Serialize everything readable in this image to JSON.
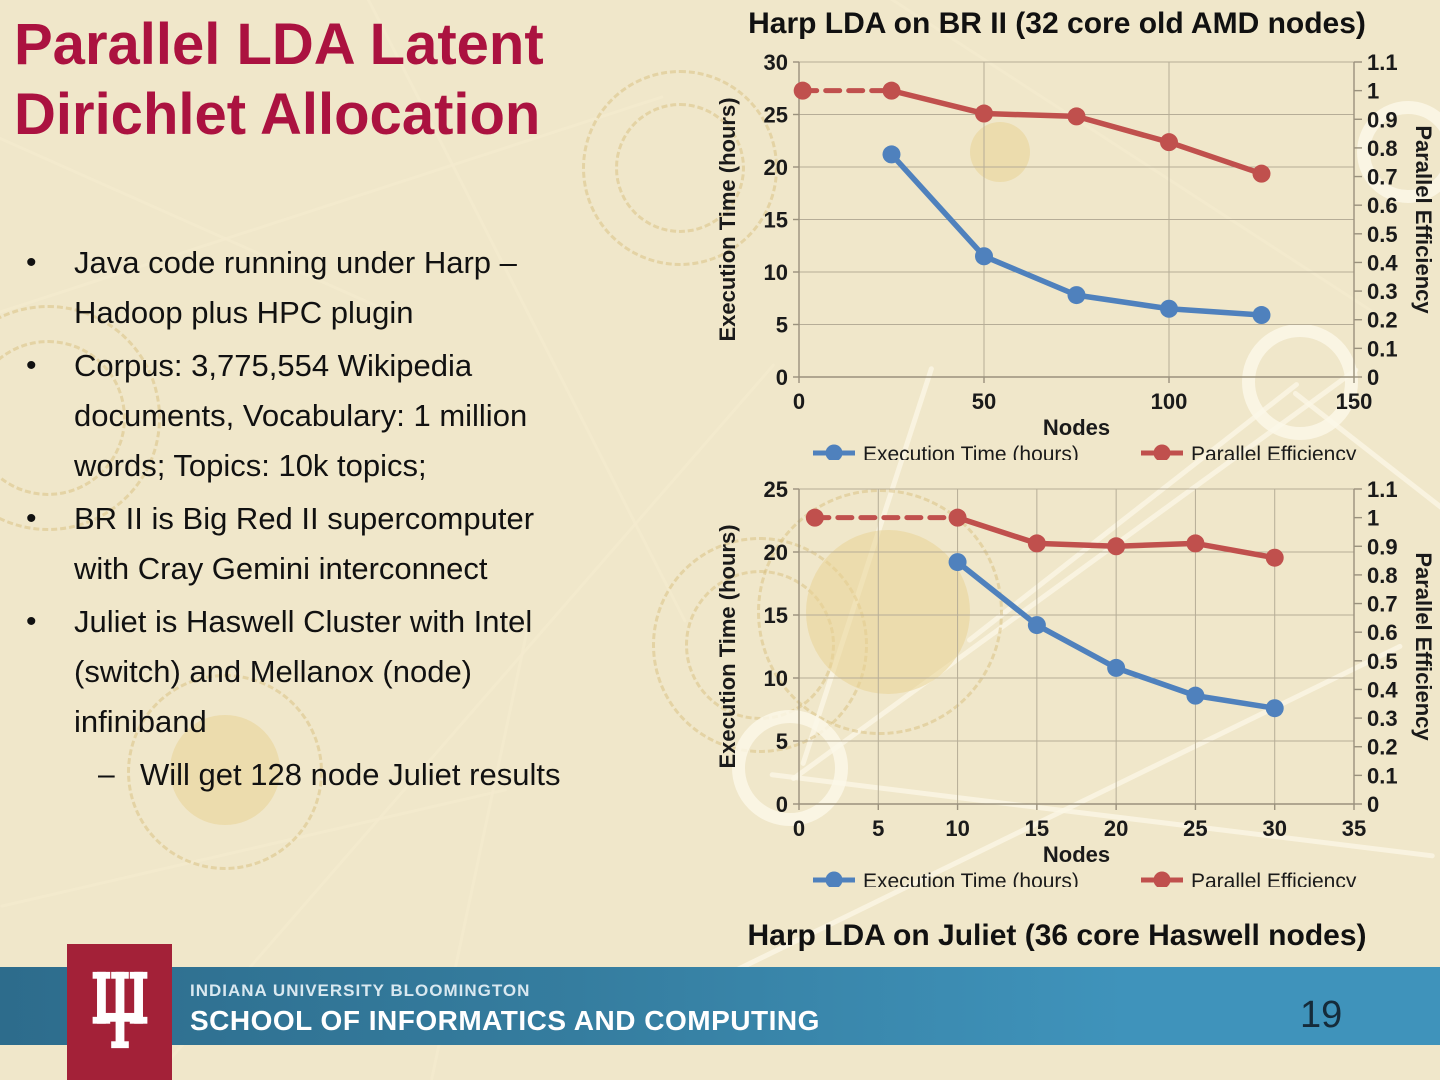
{
  "slide": {
    "title": "Parallel LDA Latent\nDirichlet Allocation",
    "bullets": [
      {
        "level": 1,
        "marker": "•",
        "text": "Java code running under Harp –\nHadoop plus HPC plugin"
      },
      {
        "level": 1,
        "marker": "•",
        "text": "Corpus: 3,775,554 Wikipedia\ndocuments, Vocabulary: 1 million\nwords; Topics: 10k topics;"
      },
      {
        "level": 1,
        "marker": "•",
        "text": "BR II is Big Red II supercomputer\nwith Cray Gemini interconnect"
      },
      {
        "level": 1,
        "marker": "•",
        "text": "Juliet is Haswell Cluster with Intel\n(switch) and Mellanox (node)\ninfiniband"
      },
      {
        "level": 2,
        "marker": "–",
        "text": "Will get 128 node Juliet results"
      }
    ],
    "page_number": "19"
  },
  "footer": {
    "line1": "INDIANA UNIVERSITY BLOOMINGTON",
    "line2": "SCHOOL OF INFORMATICS AND COMPUTING",
    "logo": "iu-trident-logo"
  },
  "colors": {
    "background": "#f0e7ca",
    "title_crimson": "#ab1240",
    "chart_blue": "#4f81bd",
    "chart_red": "#c0504d",
    "footer_teal_left": "#2d6c8c",
    "footer_teal_right": "#3f93bb",
    "logo_crimson": "#a32138",
    "page_number_color": "#152b3a"
  },
  "chart_data": [
    {
      "type": "line",
      "title": "Harp LDA on BR II (32 core old AMD nodes)",
      "title_position": "top",
      "xlabel": "Nodes",
      "ylabel_left": "Execution Time (hours)",
      "ylabel_right": "Parallel Efficiency",
      "xlim": [
        0,
        150
      ],
      "xticks": [
        0,
        50,
        100,
        150
      ],
      "ylim_left": [
        0,
        30
      ],
      "yticks_left": [
        0,
        5,
        10,
        15,
        20,
        25,
        30
      ],
      "ylim_right": [
        0,
        1.1
      ],
      "yticks_right": [
        0,
        0.1,
        0.2,
        0.3,
        0.4,
        0.5,
        0.6,
        0.7,
        0.8,
        0.9,
        1,
        1.1
      ],
      "grid": true,
      "legend_position": "bottom",
      "series": [
        {
          "name": "Execution Time (hours)",
          "axis": "left",
          "color": "#4f81bd",
          "marker": "circle",
          "points": [
            [
              25,
              21.2
            ],
            [
              50,
              11.5
            ],
            [
              75,
              7.8
            ],
            [
              100,
              6.5
            ],
            [
              125,
              5.9
            ]
          ]
        },
        {
          "name": "Parallel Efficiency",
          "axis": "right",
          "color": "#c0504d",
          "marker": "circle",
          "first_segment_dashed": true,
          "points": [
            [
              1,
              1.0
            ],
            [
              25,
              1.0
            ],
            [
              50,
              0.92
            ],
            [
              75,
              0.91
            ],
            [
              100,
              0.82
            ],
            [
              125,
              0.71
            ]
          ]
        }
      ]
    },
    {
      "type": "line",
      "title": "Harp LDA on Juliet (36 core Haswell nodes)",
      "title_position": "bottom",
      "xlabel": "Nodes",
      "ylabel_left": "Execution Time (hours)",
      "ylabel_right": "Parallel Efficiency",
      "xlim": [
        0,
        35
      ],
      "xticks": [
        0,
        5,
        10,
        15,
        20,
        25,
        30,
        35
      ],
      "ylim_left": [
        0,
        25
      ],
      "yticks_left": [
        0,
        5,
        10,
        15,
        20,
        25
      ],
      "ylim_right": [
        0,
        1.1
      ],
      "yticks_right": [
        0,
        0.1,
        0.2,
        0.3,
        0.4,
        0.5,
        0.6,
        0.7,
        0.8,
        0.9,
        1,
        1.1
      ],
      "grid": true,
      "legend_position": "bottom",
      "series": [
        {
          "name": "Execution Time (hours)",
          "axis": "left",
          "color": "#4f81bd",
          "marker": "circle",
          "points": [
            [
              10,
              19.2
            ],
            [
              15,
              14.2
            ],
            [
              20,
              10.8
            ],
            [
              25,
              8.6
            ],
            [
              30,
              7.6
            ]
          ]
        },
        {
          "name": "Parallel Efficiency",
          "axis": "right",
          "color": "#c0504d",
          "marker": "circle",
          "first_segment_dashed": true,
          "points": [
            [
              1,
              1.0
            ],
            [
              10,
              1.0
            ],
            [
              15,
              0.91
            ],
            [
              20,
              0.9
            ],
            [
              25,
              0.91
            ],
            [
              30,
              0.86
            ]
          ]
        }
      ]
    }
  ]
}
